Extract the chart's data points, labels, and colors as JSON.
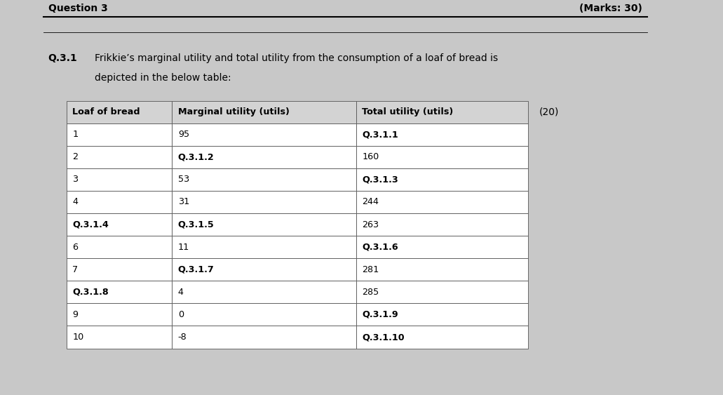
{
  "title_left": "Question 3",
  "title_right": "(Marks: 30)",
  "question_label": "Q.3.1",
  "question_text_line1": "Frikkie’s marginal utility and total utility from the consumption of a loaf of bread is",
  "question_text_line2": "depicted in the below table:",
  "marks_label": "(20)",
  "col_headers": [
    "Loaf of bread",
    "Marginal utility (utils)",
    "Total utility (utils)"
  ],
  "rows": [
    [
      "1",
      "95",
      "Q.3.1.1"
    ],
    [
      "2",
      "Q.3.1.2",
      "160"
    ],
    [
      "3",
      "53",
      "Q.3.1.3"
    ],
    [
      "4",
      "31",
      "244"
    ],
    [
      "Q.3.1.4",
      "Q.3.1.5",
      "263"
    ],
    [
      "6",
      "11",
      "Q.3.1.6"
    ],
    [
      "7",
      "Q.3.1.7",
      "281"
    ],
    [
      "Q.3.1.8",
      "4",
      "285"
    ],
    [
      "9",
      "0",
      "Q.3.1.9"
    ],
    [
      "10",
      "-8",
      "Q.3.1.10"
    ]
  ],
  "bold_cells": {
    "header": [
      true,
      true,
      true
    ],
    "rows": [
      [
        false,
        false,
        true
      ],
      [
        false,
        true,
        false
      ],
      [
        false,
        false,
        true
      ],
      [
        false,
        false,
        false
      ],
      [
        true,
        true,
        false
      ],
      [
        false,
        false,
        true
      ],
      [
        false,
        true,
        false
      ],
      [
        true,
        false,
        false
      ],
      [
        false,
        false,
        true
      ],
      [
        false,
        false,
        true
      ]
    ]
  },
  "header_bg": "#d3d3d3",
  "row_bg": "#ffffff",
  "border_color": "#000000",
  "text_color": "#000000",
  "bg_color": "#ffffff",
  "page_bg": "#c8c8c8",
  "content_bg": "#ffffff",
  "figsize": [
    10.31,
    5.63
  ],
  "dpi": 100
}
